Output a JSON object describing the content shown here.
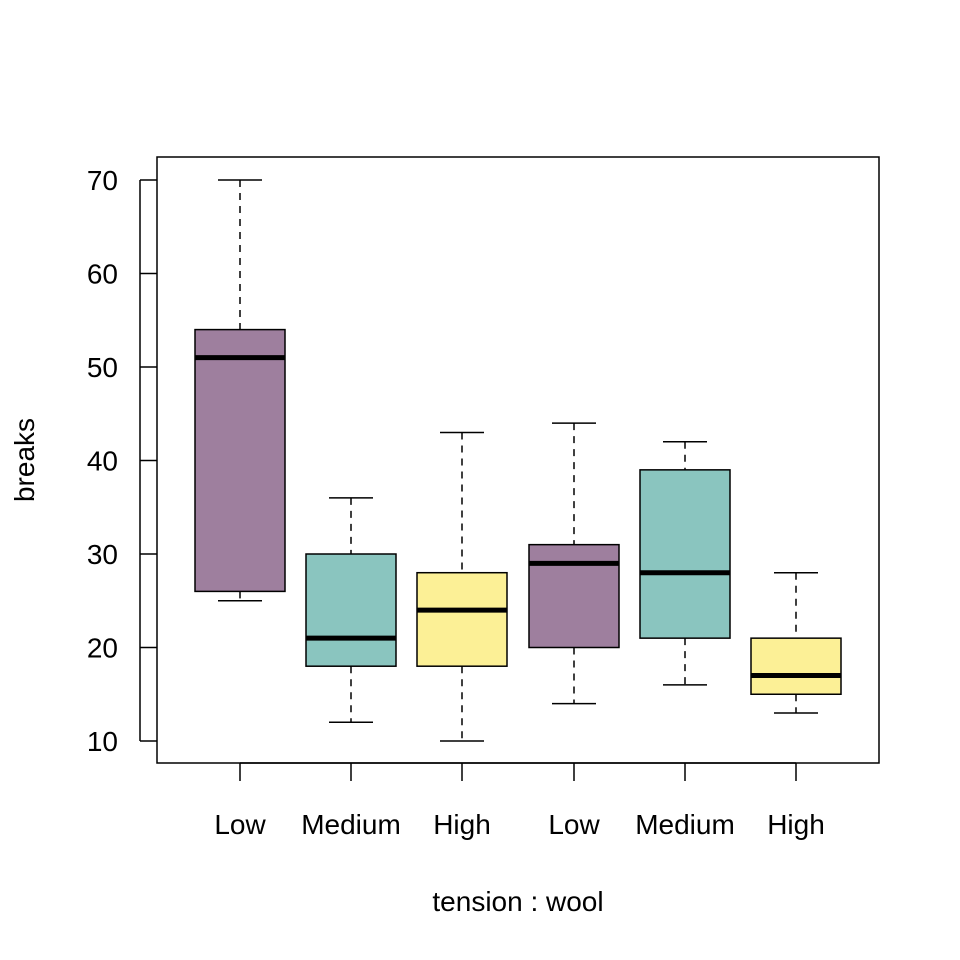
{
  "chart_data": {
    "type": "box",
    "title": "",
    "xlabel": "tension : wool",
    "ylabel": "breaks",
    "ylim": [
      7.6,
      72.6
    ],
    "yticks": [
      10,
      20,
      30,
      40,
      50,
      60,
      70
    ],
    "categories": [
      "Low",
      "Medium",
      "High",
      "Low",
      "Medium",
      "High"
    ],
    "colors": [
      "#9E7F9E",
      "#8AC5BF",
      "#FCF096",
      "#9E7F9E",
      "#8AC5BF",
      "#FCF096"
    ],
    "boxes": [
      {
        "min": 25,
        "q1": 26,
        "median": 51,
        "q3": 54,
        "max": 70
      },
      {
        "min": 12,
        "q1": 18,
        "median": 21,
        "q3": 30,
        "max": 36
      },
      {
        "min": 10,
        "q1": 18,
        "median": 24,
        "q3": 28,
        "max": 43
      },
      {
        "min": 14,
        "q1": 20,
        "median": 29,
        "q3": 31,
        "max": 44
      },
      {
        "min": 16,
        "q1": 21,
        "median": 28,
        "q3": 39,
        "max": 42
      },
      {
        "min": 13,
        "q1": 15,
        "median": 17,
        "q3": 21,
        "max": 28
      }
    ]
  }
}
